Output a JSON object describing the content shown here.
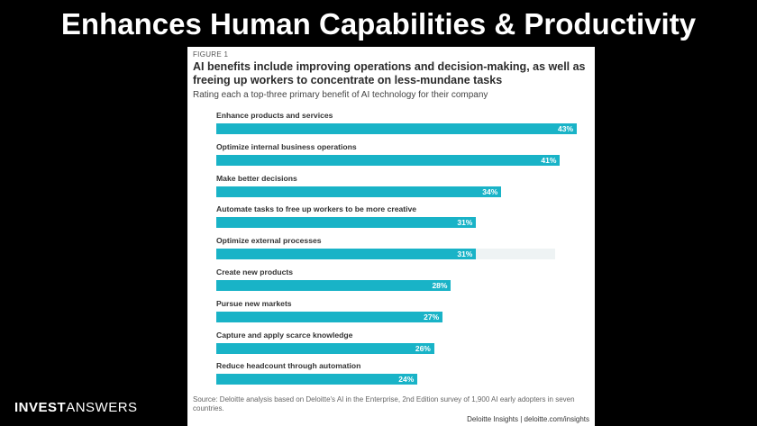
{
  "slide": {
    "title": "Enhances Human Capabilities & Productivity",
    "logo_bold": "INVEST",
    "logo_light": "ANSWERS"
  },
  "figure": {
    "label": "FIGURE 1",
    "source": "Source: Deloitte analysis based on Deloitte's AI in the Enterprise, 2nd Edition survey of 1,900 AI early adopters in seven countries.",
    "credit": "Deloitte Insights | deloitte.com/insights"
  },
  "chart_data": {
    "type": "bar",
    "orientation": "horizontal",
    "title": "AI benefits include improving operations and decision-making, as well as freeing up workers to concentrate on less-mundane tasks",
    "subtitle": "Rating each a top-three primary benefit of AI technology for their company",
    "categories": [
      "Enhance products and services",
      "Optimize internal business operations",
      "Make better decisions",
      "Automate tasks to free up workers to be more creative",
      "Optimize external processes",
      "Create new products",
      "Pursue new markets",
      "Capture and apply scarce knowledge",
      "Reduce headcount through automation"
    ],
    "values": [
      43,
      41,
      34,
      31,
      31,
      28,
      27,
      26,
      24
    ],
    "value_labels": [
      "43%",
      "41%",
      "34%",
      "31%",
      "31%",
      "28%",
      "27%",
      "26%",
      "24%"
    ],
    "unit": "%",
    "xlim": [
      0,
      45
    ],
    "bar_color": "#19b3c7",
    "grid": false,
    "legend": "none"
  }
}
